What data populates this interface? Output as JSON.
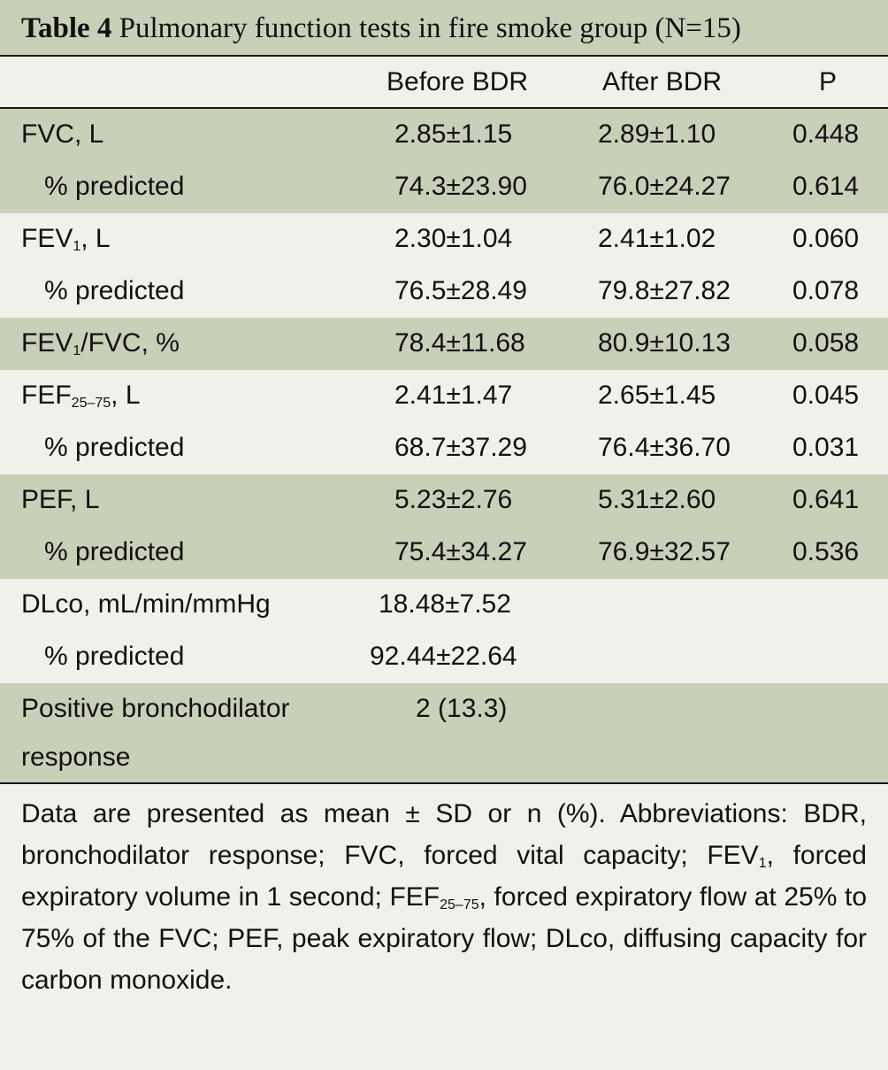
{
  "title": {
    "label": "Table 4",
    "text": "Pulmonary function tests in fire smoke group (N=15)"
  },
  "headers": [
    "",
    "Before BDR",
    "After BDR",
    "P"
  ],
  "rows": [
    {
      "label": "FVC, L",
      "before": "2.85±1.15",
      "after": "2.89±1.10",
      "p": "0.448"
    },
    {
      "label": "% predicted",
      "before": "74.3±23.90",
      "after": "76.0±24.27",
      "p": "0.614"
    },
    {
      "label_main": "FEV",
      "label_sub": "1",
      "label_rest": ", L",
      "before": "2.30±1.04",
      "after": "2.41±1.02",
      "p": "0.060"
    },
    {
      "label": "% predicted",
      "before": "76.5±28.49",
      "after": "79.8±27.82",
      "p": "0.078"
    },
    {
      "label_main": "FEV",
      "label_sub": "1",
      "label_rest": "/FVC, %",
      "before": "78.4±11.68",
      "after": "80.9±10.13",
      "p": "0.058"
    },
    {
      "label_main": "FEF",
      "label_sub": "25–75",
      "label_rest": ", L",
      "before": "2.41±1.47",
      "after": "2.65±1.45",
      "p": "0.045"
    },
    {
      "label": "% predicted",
      "before": "68.7±37.29",
      "after": "76.4±36.70",
      "p": "0.031"
    },
    {
      "label": "PEF, L",
      "before": "5.23±2.76",
      "after": "5.31±2.60",
      "p": "0.641"
    },
    {
      "label": "% predicted",
      "before": "75.4±34.27",
      "after": "76.9±32.57",
      "p": "0.536"
    },
    {
      "label": "DLco, mL/min/mmHg",
      "before": "18.48±7.52",
      "after": "",
      "p": ""
    },
    {
      "label": "% predicted",
      "before": "92.44±22.64",
      "after": "",
      "p": ""
    },
    {
      "label_line1": "Positive bronchodilator",
      "label_line2": "response",
      "before": "2 (13.3)",
      "after": "",
      "p": ""
    }
  ],
  "footnote": {
    "part1": "Data are presented as mean ± SD or n (%). Abbreviations: BDR, bronchodilator response; FVC, forced vital capacity; FEV",
    "sub1": "1",
    "part2": ", forced expiratory volume in 1 second; FEF",
    "sub2": "25–75",
    "part3": ", forced expiratory flow at 25% to 75% of the FVC; PEF, peak expiratory flow; DLco, diffusing capacity for carbon monoxide."
  },
  "colors": {
    "band_green": "#c8d0b8",
    "band_light": "#f0f1ea",
    "rule": "#1a1a1a"
  }
}
